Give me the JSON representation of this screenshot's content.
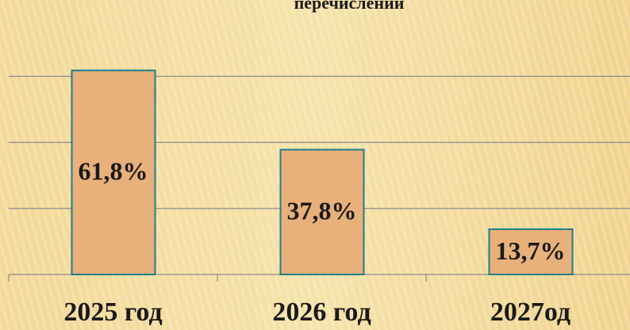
{
  "chart_data": {
    "type": "bar",
    "title": "перечислений",
    "categories": [
      "2025 год",
      "2026 год",
      "2027од"
    ],
    "values": [
      61.8,
      37.8,
      13.7
    ],
    "value_labels": [
      "61,8%",
      "37,8%",
      "13,7%"
    ],
    "color": "#e8b07a",
    "ylim": [
      0,
      80
    ],
    "yticks": [
      0,
      20,
      40,
      60
    ],
    "grid": true
  }
}
